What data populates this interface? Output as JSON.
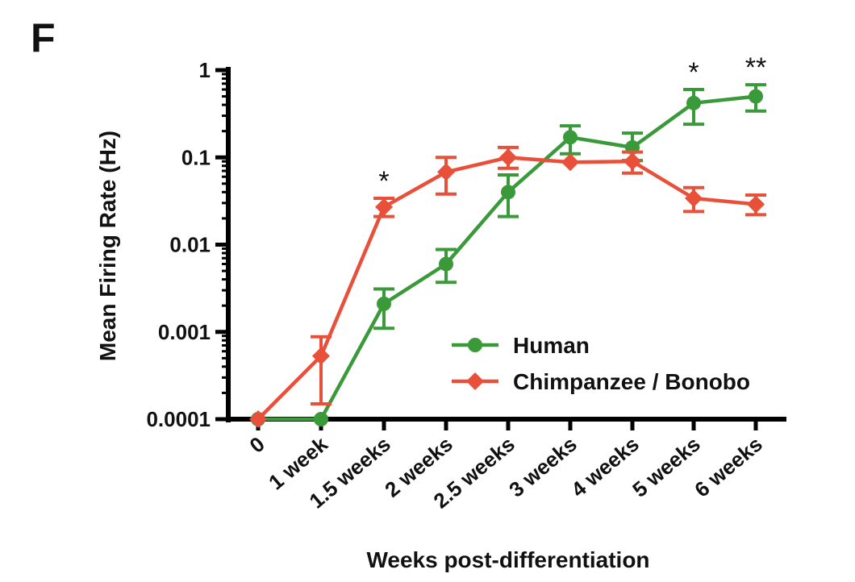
{
  "panel_label": "F",
  "chart_data": {
    "type": "line",
    "title": "",
    "xlabel": "Weeks post-differentiation",
    "ylabel": "Mean Firing Rate (Hz)",
    "yscale": "log",
    "ylim": [
      0.0001,
      1
    ],
    "yticks": [
      {
        "value": 0.0001,
        "label": "0.0001"
      },
      {
        "value": 0.001,
        "label": "0.001"
      },
      {
        "value": 0.01,
        "label": "0.01"
      },
      {
        "value": 0.1,
        "label": "0.1"
      },
      {
        "value": 1,
        "label": "1"
      }
    ],
    "categories": [
      "0",
      "1 week",
      "1.5 weeks",
      "2 weeks",
      "2.5 weeks",
      "3 weeks",
      "4 weeks",
      "5 weeks",
      "6 weeks"
    ],
    "legend_position": "bottom-right",
    "series": [
      {
        "name": "Human",
        "color": "#3a9a3a",
        "marker": "circle",
        "values": [
          0.0001,
          0.0001,
          0.0021,
          0.006,
          0.04,
          0.17,
          0.13,
          0.42,
          0.5
        ],
        "err_low": [
          0.0001,
          0.0001,
          0.0011,
          0.0037,
          0.021,
          0.11,
          0.092,
          0.24,
          0.34
        ],
        "err_high": [
          0.0001,
          0.0001,
          0.0031,
          0.0088,
          0.063,
          0.23,
          0.19,
          0.6,
          0.68
        ]
      },
      {
        "name": "Chimpanzee / Bonobo",
        "color": "#e8503a",
        "marker": "diamond",
        "values": [
          0.0001,
          0.00053,
          0.027,
          0.068,
          0.1,
          0.088,
          0.09,
          0.034,
          0.029
        ],
        "err_low": [
          0.0001,
          0.00015,
          0.021,
          0.038,
          0.075,
          0.088,
          0.066,
          0.024,
          0.022
        ],
        "err_high": [
          0.0001,
          0.00088,
          0.034,
          0.1,
          0.13,
          0.088,
          0.115,
          0.045,
          0.037
        ]
      }
    ],
    "annotations": [
      {
        "category": "1.5 weeks",
        "text": "*",
        "above_value": 0.034
      },
      {
        "category": "5 weeks",
        "text": "*",
        "above_value": 0.6
      },
      {
        "category": "6 weeks",
        "text": "**",
        "above_value": 0.68
      }
    ]
  }
}
